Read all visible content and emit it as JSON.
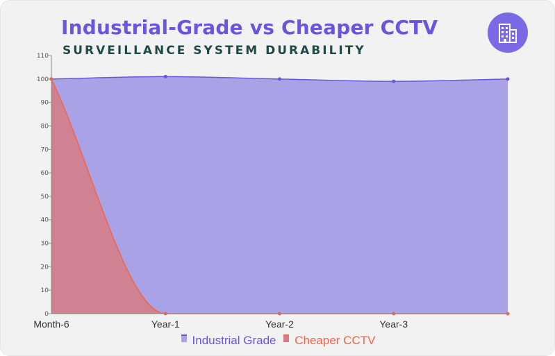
{
  "header": {
    "title": "Industrial-Grade vs Cheaper CCTV",
    "subtitle": "SURVEILLANCE SYSTEM DURABILITY",
    "badge_icon": "building-icon"
  },
  "colors": {
    "industrial_fill": "#a9a2e6",
    "industrial_line": "#6a55dc",
    "cheaper_fill": "#d47d88",
    "cheaper_line": "#f0664a",
    "badge": "#7b6ae6"
  },
  "chart_data": {
    "type": "area",
    "title": "Industrial-Grade vs Cheaper CCTV",
    "subtitle": "SURVEILLANCE SYSTEM DURABILITY",
    "categories": [
      "Month-6",
      "Year-1",
      "Year-2",
      "Year-3",
      ""
    ],
    "series": [
      {
        "name": "Industrial Grade",
        "values": [
          100,
          101,
          100,
          99,
          100
        ]
      },
      {
        "name": "Cheaper CCTV",
        "values": [
          100,
          0,
          0,
          0,
          0
        ]
      }
    ],
    "ylim": [
      0,
      110
    ],
    "yticks": [
      0,
      10,
      20,
      30,
      40,
      50,
      60,
      70,
      80,
      90,
      100,
      110
    ],
    "xlabel": "",
    "ylabel": "",
    "grid": false,
    "legend_position": "bottom"
  }
}
